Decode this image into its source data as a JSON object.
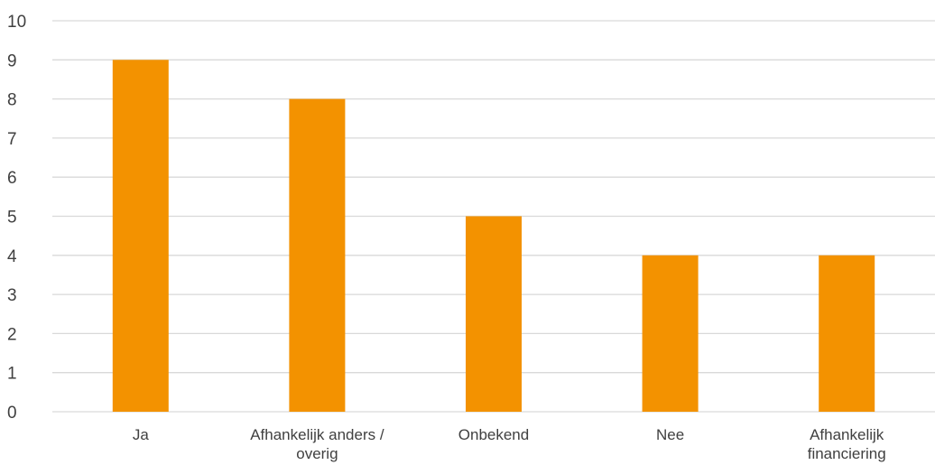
{
  "chart_data": {
    "type": "bar",
    "categories": [
      [
        "Ja"
      ],
      [
        "Afhankelijk anders /",
        "overig"
      ],
      [
        "Onbekend"
      ],
      [
        "Nee"
      ],
      [
        "Afhankelijk",
        "financiering"
      ]
    ],
    "values": [
      9,
      8,
      5,
      4,
      4
    ],
    "ylim": [
      0,
      10
    ],
    "yticks": [
      "0",
      "1",
      "2",
      "3",
      "4",
      "5",
      "6",
      "7",
      "8",
      "9",
      "10"
    ],
    "title": "",
    "xlabel": "",
    "ylabel": "",
    "grid": true,
    "legend": "none",
    "colors": {
      "bar": "#F39200",
      "grid": "#D9D9D9",
      "text": "#404040"
    }
  }
}
